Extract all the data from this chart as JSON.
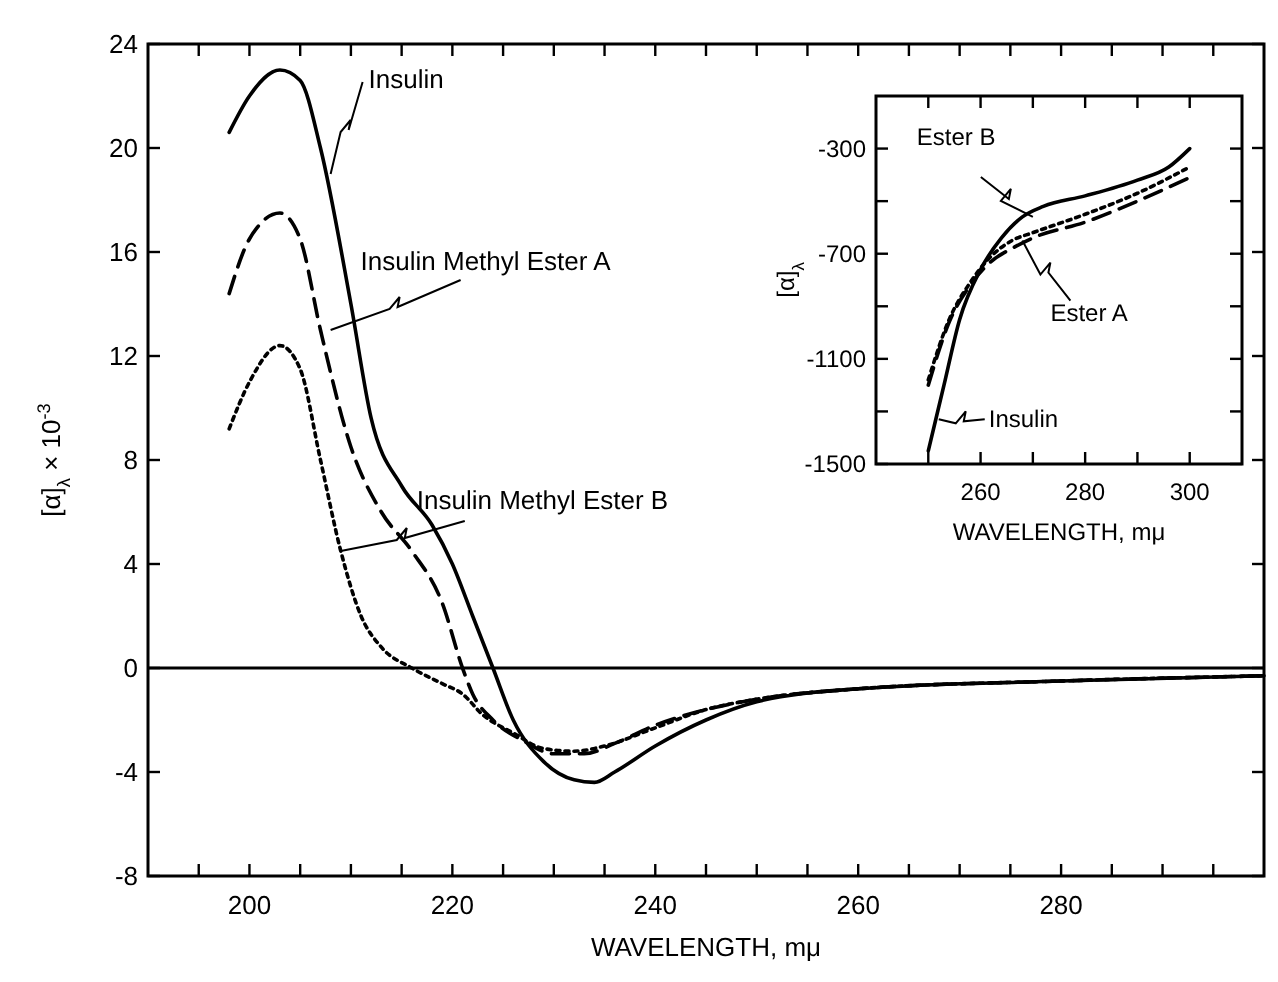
{
  "chart_data": [
    {
      "type": "line",
      "xlabel": "WAVELENGTH, mμ",
      "ylabel": "[α]$_{λ}$ × 10$^{-3}$",
      "xlim": [
        190,
        300
      ],
      "ylim": [
        -8,
        24
      ],
      "xticks": [
        {
          "value": 195,
          "label": null
        },
        200,
        {
          "value": 205,
          "label": null
        },
        {
          "value": 210,
          "label": null
        },
        {
          "value": 215,
          "label": null
        },
        220,
        {
          "value": 225,
          "label": null
        },
        {
          "value": 230,
          "label": null
        },
        {
          "value": 235,
          "label": null
        },
        240,
        {
          "value": 245,
          "label": null
        },
        {
          "value": 250,
          "label": null
        },
        {
          "value": 255,
          "label": null
        },
        260,
        {
          "value": 265,
          "label": null
        },
        {
          "value": 270,
          "label": null
        },
        {
          "value": 275,
          "label": null
        },
        280,
        {
          "value": 285,
          "label": null
        },
        {
          "value": 290,
          "label": null
        },
        {
          "value": 295,
          "label": null
        }
      ],
      "yticks": [
        -8,
        -4,
        0,
        4,
        8,
        12,
        16,
        20,
        24
      ],
      "grid": false,
      "series": [
        {
          "color": "#000000",
          "line_style": "solid",
          "x": [
            198,
            200,
            203,
            205,
            207,
            210,
            212,
            215,
            218,
            220,
            222,
            224,
            226,
            229,
            232,
            234,
            236,
            240,
            245,
            250,
            260,
            280,
            300
          ],
          "values": [
            20.6,
            22,
            23,
            22.6,
            20,
            14,
            9.6,
            7,
            5.5,
            4,
            2,
            0,
            -2,
            -3.6,
            -4.3,
            -4.4,
            -4,
            -3,
            -2,
            -1.3,
            -0.8,
            -0.5,
            -0.3
          ]
        },
        {
          "color": "#000000",
          "line_style": "dashed",
          "x": [
            198,
            200,
            203,
            205,
            207,
            210,
            213,
            216,
            219,
            221,
            222,
            224,
            227,
            230,
            233,
            236,
            240,
            245,
            250,
            260,
            280,
            300
          ],
          "values": [
            14.4,
            16.5,
            17.5,
            16.5,
            13,
            8.5,
            6,
            4.5,
            2.5,
            0,
            -1,
            -2,
            -2.8,
            -3.3,
            -3.3,
            -2.9,
            -2.2,
            -1.6,
            -1.2,
            -0.8,
            -0.5,
            -0.3
          ]
        },
        {
          "color": "#000000",
          "line_style": "dotted",
          "x": [
            198,
            200,
            203,
            205,
            207,
            209,
            211,
            213,
            216,
            219,
            221,
            223,
            226,
            229,
            232,
            235,
            240,
            245,
            250,
            260,
            280,
            300
          ],
          "values": [
            9.2,
            11,
            12.4,
            11.5,
            8,
            4.5,
            2,
            0.8,
            0,
            -0.6,
            -1,
            -1.8,
            -2.5,
            -3.1,
            -3.2,
            -3,
            -2.3,
            -1.6,
            -1.2,
            -0.8,
            -0.5,
            -0.3
          ]
        }
      ],
      "ref_lines": [
        {
          "axis": "y",
          "value": 0,
          "color": "#000000"
        }
      ],
      "annotations": [
        {
          "text": "Insulin",
          "x": 208,
          "y": 19
        },
        {
          "text": "Insulin Methyl Ester A",
          "x": 208,
          "y": 13
        },
        {
          "text": "Insulin Methyl Ester B",
          "x": 209,
          "y": 4.5
        }
      ]
    },
    {
      "type": "line",
      "xlabel": "WAVELENGTH, mμ",
      "ylabel": "[α]$_{λ}$",
      "xlim": [
        240,
        310
      ],
      "ylim": [
        -1500,
        -100
      ],
      "xticks": [
        {
          "value": 250,
          "label": null
        },
        260,
        {
          "value": 270,
          "label": null
        },
        280,
        {
          "value": 290,
          "label": null
        },
        300
      ],
      "yticks": [
        -1500,
        {
          "value": -1300,
          "label": null
        },
        -1100,
        {
          "value": -900,
          "label": null
        },
        -700,
        {
          "value": -500,
          "label": null
        },
        -300
      ],
      "grid": false,
      "series": [
        {
          "color": "#000000",
          "line_style": "solid",
          "x": [
            250,
            253,
            256,
            260,
            264,
            268,
            272,
            280,
            290,
            296,
            300
          ],
          "values": [
            -1450,
            -1200,
            -950,
            -760,
            -640,
            -560,
            -520,
            -480,
            -420,
            -370,
            -300
          ]
        },
        {
          "color": "#000000",
          "line_style": "dashed",
          "x": [
            250,
            254,
            258,
            262,
            266,
            270,
            280,
            290,
            300
          ],
          "values": [
            -1200,
            -960,
            -820,
            -730,
            -680,
            -640,
            -580,
            -500,
            -410
          ]
        },
        {
          "color": "#000000",
          "line_style": "dotted",
          "x": [
            250,
            254,
            258,
            262,
            266,
            270,
            280,
            290,
            300
          ],
          "values": [
            -1180,
            -950,
            -810,
            -710,
            -650,
            -620,
            -550,
            -470,
            -370
          ]
        }
      ],
      "annotations": [
        {
          "text": "Ester B",
          "x": 270,
          "y": -560
        },
        {
          "text": "Ester A",
          "x": 268,
          "y": -650
        },
        {
          "text": "Insulin",
          "x": 252,
          "y": -1330
        }
      ]
    }
  ]
}
